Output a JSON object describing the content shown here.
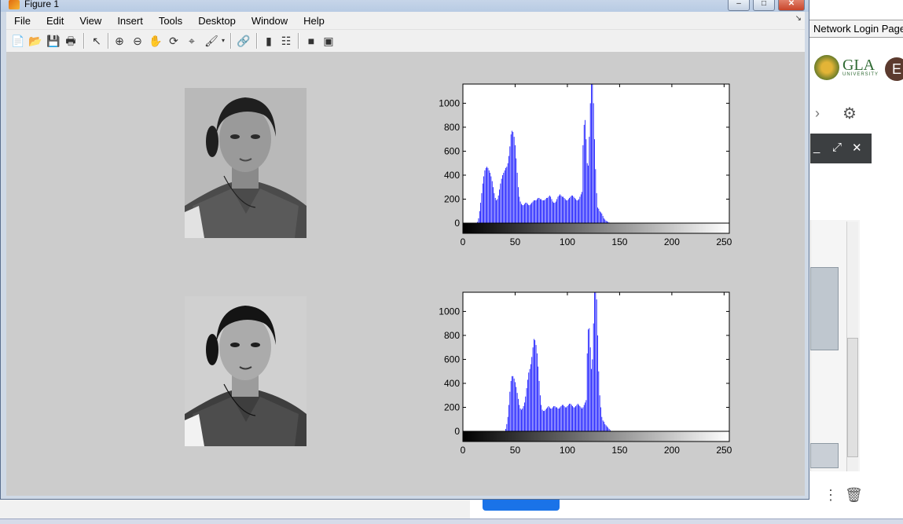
{
  "window": {
    "title": "Figure 1",
    "controls": {
      "minimize": "–",
      "maximize": "□",
      "close": "✕"
    }
  },
  "menu": [
    "File",
    "Edit",
    "View",
    "Insert",
    "Tools",
    "Desktop",
    "Window",
    "Help"
  ],
  "toolbar_icons": [
    "new-figure-icon",
    "open-file-icon",
    "save-icon",
    "print-icon",
    "select-arrow-icon",
    "zoom-in-icon",
    "zoom-out-icon",
    "pan-hand-icon",
    "rotate-3d-icon",
    "data-cursor-icon",
    "brush-icon",
    "link-plot-icon",
    "colorbar-icon",
    "legend-icon",
    "hide-plot-tools-icon",
    "show-plot-tools-icon"
  ],
  "background": {
    "tab_button": "Network Login Page",
    "logo_text": "GLA",
    "logo_sub": "UNIVERSITY",
    "avatar_letter": "E"
  },
  "chart_data": [
    {
      "type": "bar",
      "title": "",
      "xlabel": "",
      "ylabel": "",
      "xlim": [
        0,
        255
      ],
      "ylim": [
        0,
        1160
      ],
      "xticks": [
        0,
        50,
        100,
        150,
        200,
        250
      ],
      "yticks": [
        0,
        200,
        400,
        600,
        800,
        1000
      ],
      "bar_color": "#0000ff",
      "colorbar": "grayscale 0-255",
      "series": [
        {
          "x_start": 0,
          "values": [
            0,
            0,
            0,
            0,
            0,
            0,
            0,
            0,
            0,
            0,
            0,
            0,
            0,
            0,
            10,
            40,
            100,
            170,
            250,
            330,
            390,
            440,
            460,
            470,
            460,
            440,
            420,
            390,
            350,
            300,
            250,
            210,
            190,
            200,
            230,
            280,
            330,
            370,
            400,
            420,
            440,
            460,
            470,
            500,
            560,
            640,
            740,
            770,
            760,
            720,
            650,
            540,
            420,
            300,
            220,
            180,
            160,
            150,
            150,
            160,
            170,
            170,
            160,
            150,
            150,
            160,
            170,
            180,
            190,
            190,
            190,
            200,
            210,
            210,
            200,
            200,
            190,
            190,
            190,
            200,
            210,
            210,
            220,
            230,
            220,
            200,
            180,
            170,
            170,
            180,
            200,
            220,
            230,
            240,
            230,
            220,
            220,
            210,
            200,
            190,
            190,
            200,
            210,
            220,
            230,
            230,
            220,
            210,
            200,
            190,
            190,
            200,
            220,
            240,
            260,
            650,
            820,
            860,
            700,
            500,
            480,
            720,
            1000,
            1160,
            1160,
            1000,
            700,
            450,
            250,
            130,
            120,
            100,
            90,
            80,
            60,
            40,
            30,
            20,
            15,
            10,
            5,
            0,
            0,
            0,
            0,
            0,
            0,
            0,
            0,
            0,
            0,
            0,
            0,
            0,
            0,
            0,
            0,
            0,
            0,
            0,
            0,
            0,
            0,
            0,
            0,
            0,
            0,
            0,
            0,
            0,
            0,
            0,
            0,
            0,
            0,
            0,
            0,
            0,
            0,
            0,
            0,
            0,
            0,
            0,
            0,
            0,
            0,
            0,
            0,
            0,
            0,
            0,
            0,
            0,
            0,
            0,
            0,
            0,
            0,
            0,
            0,
            0,
            0,
            0,
            0,
            0,
            0,
            0,
            0,
            0,
            0,
            0,
            0,
            0,
            0,
            0,
            0,
            0,
            0,
            0,
            0,
            0,
            0,
            0,
            0,
            0,
            0,
            0,
            0,
            0,
            0,
            0,
            0,
            0,
            0,
            0,
            0,
            0,
            0,
            0,
            0,
            0,
            0,
            0,
            0,
            0
          ]
        }
      ]
    },
    {
      "type": "bar",
      "title": "",
      "xlabel": "",
      "ylabel": "",
      "xlim": [
        0,
        255
      ],
      "ylim": [
        0,
        1160
      ],
      "xticks": [
        0,
        50,
        100,
        150,
        200,
        250
      ],
      "yticks": [
        0,
        200,
        400,
        600,
        800,
        1000
      ],
      "bar_color": "#0000ff",
      "colorbar": "grayscale 0-255",
      "series": [
        {
          "x_start": 0,
          "values": [
            0,
            0,
            0,
            0,
            0,
            0,
            0,
            0,
            0,
            0,
            0,
            0,
            0,
            0,
            0,
            0,
            0,
            0,
            0,
            0,
            0,
            0,
            0,
            0,
            0,
            0,
            0,
            0,
            0,
            0,
            0,
            0,
            0,
            0,
            0,
            0,
            0,
            0,
            0,
            0,
            0,
            20,
            60,
            120,
            220,
            330,
            420,
            460,
            460,
            440,
            410,
            370,
            320,
            270,
            220,
            190,
            180,
            190,
            210,
            240,
            290,
            360,
            430,
            490,
            520,
            560,
            620,
            700,
            770,
            760,
            720,
            650,
            540,
            420,
            300,
            220,
            180,
            170,
            170,
            180,
            190,
            200,
            210,
            200,
            190,
            190,
            200,
            210,
            210,
            200,
            200,
            190,
            190,
            200,
            210,
            220,
            220,
            210,
            200,
            200,
            210,
            220,
            230,
            230,
            220,
            210,
            200,
            200,
            210,
            220,
            230,
            220,
            210,
            200,
            190,
            200,
            220,
            240,
            260,
            650,
            850,
            860,
            700,
            520,
            600,
            900,
            1160,
            1160,
            1100,
            800,
            500,
            300,
            200,
            120,
            90,
            80,
            60,
            50,
            40,
            30,
            20,
            10,
            0,
            0,
            0,
            0,
            0,
            0,
            0,
            0,
            0,
            0,
            0,
            0,
            0,
            0,
            0,
            0,
            0,
            0,
            0,
            0,
            0,
            0,
            0,
            0,
            0,
            0,
            0,
            0,
            0,
            0,
            0,
            0,
            0,
            0,
            0,
            0,
            0,
            0,
            0,
            0,
            0,
            0,
            0,
            0,
            0,
            0,
            0,
            0,
            0,
            0,
            0,
            0,
            0,
            0,
            0,
            0,
            0,
            0,
            0,
            0,
            0,
            0,
            0,
            0,
            0,
            0,
            0,
            0,
            0,
            0,
            0,
            0,
            0,
            0,
            0,
            0,
            0,
            0,
            0,
            0,
            0,
            0,
            0,
            0,
            0,
            0,
            0,
            0,
            0,
            0,
            0,
            0,
            0,
            0,
            0,
            0,
            0
          ]
        }
      ]
    }
  ]
}
